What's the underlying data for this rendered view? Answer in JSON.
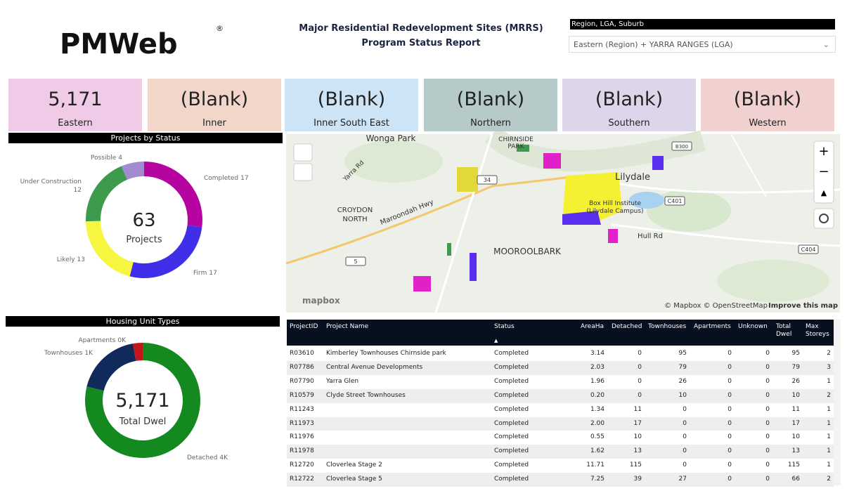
{
  "header": {
    "logo": "PMWeb",
    "logo_mark": "®",
    "title_lines": [
      "Major Residential Redevelopment Sites (MRRS)",
      "Program Status Report"
    ]
  },
  "slicer": {
    "label": "Region, LGA, Suburb",
    "value": "Eastern (Region) + YARRA RANGES (LGA)"
  },
  "cards": [
    {
      "value": "5,171",
      "label": "Eastern",
      "color": "#efcbe7"
    },
    {
      "value": "(Blank)",
      "label": "Inner",
      "color": "#f3d6ca"
    },
    {
      "value": "(Blank)",
      "label": "Inner South East",
      "color": "#cde4f6"
    },
    {
      "value": "(Blank)",
      "label": "Northern",
      "color": "#b5cac9"
    },
    {
      "value": "(Blank)",
      "label": "Southern",
      "color": "#ddd6ea"
    },
    {
      "value": "(Blank)",
      "label": "Western",
      "color": "#f1d0d0"
    }
  ],
  "chart_data": [
    {
      "type": "pie",
      "title": "Projects by Status",
      "donut": true,
      "categories": [
        "Completed",
        "Firm",
        "Likely",
        "Under Construction",
        "Possible"
      ],
      "values": [
        17,
        17,
        13,
        12,
        4
      ],
      "colors": [
        "#b5049f",
        "#3f2fe8",
        "#f6f53f",
        "#3e9a4c",
        "#a48bcf"
      ],
      "center_value": 63,
      "center_label": "Projects"
    },
    {
      "type": "pie",
      "title": "Housing Unit Types",
      "donut": true,
      "categories": [
        "Detached",
        "Townhouses",
        "Apartments"
      ],
      "values": [
        4079,
        952,
        140
      ],
      "value_labels": [
        "4K",
        "1K",
        "0K"
      ],
      "colors": [
        "#13891f",
        "#102a5c",
        "#c5161d"
      ],
      "center_value": {
        "value": 5171,
        "label": "5,171"
      },
      "center_label": "Total Dwel"
    }
  ],
  "map": {
    "places": [
      "Wonga Park",
      "CHIRNSIDE",
      "PARK",
      "Lilydale",
      "CROYDON",
      "NORTH",
      "Maroondah Hwy",
      "Yarra Rd",
      "MOOROOLBARK",
      "Hull Rd",
      "Box Hill Institute",
      "(Lilydale Campus)",
      "34",
      "5",
      "C401",
      "C404",
      "B300"
    ],
    "logo": "mapbox",
    "attribution": "© Mapbox © OpenStreetMap",
    "improve": "Improve this map"
  },
  "table": {
    "columns": [
      "ProjectID",
      "Project Name",
      "Status",
      "AreaHa",
      "Detached",
      "Townhouses",
      "Apartments",
      "Unknown",
      "Total Dwel",
      "Max Storeys"
    ],
    "rows": [
      [
        "R03610",
        "Kimberley Townhouses Chirnside park",
        "Completed",
        "3.14",
        "0",
        "95",
        "0",
        "0",
        "95",
        "2"
      ],
      [
        "R07786",
        "Central Avenue Developments",
        "Completed",
        "2.03",
        "0",
        "79",
        "0",
        "0",
        "79",
        "3"
      ],
      [
        "R07790",
        "Yarra Glen",
        "Completed",
        "1.96",
        "0",
        "26",
        "0",
        "0",
        "26",
        "1"
      ],
      [
        "R10579",
        "Clyde Street Townhouses",
        "Completed",
        "0.20",
        "0",
        "10",
        "0",
        "0",
        "10",
        "2"
      ],
      [
        "R11243",
        null,
        "Completed",
        "1.34",
        "11",
        "0",
        "0",
        "0",
        "11",
        "1"
      ],
      [
        "R11973",
        null,
        "Completed",
        "2.00",
        "17",
        "0",
        "0",
        "0",
        "17",
        "1"
      ],
      [
        "R11976",
        null,
        "Completed",
        "0.55",
        "10",
        "0",
        "0",
        "0",
        "10",
        "1"
      ],
      [
        "R11978",
        null,
        "Completed",
        "1.62",
        "13",
        "0",
        "0",
        "0",
        "13",
        "1"
      ],
      [
        "R12720",
        "Cloverlea Stage 2",
        "Completed",
        "11.71",
        "115",
        "0",
        "0",
        "0",
        "115",
        "1"
      ],
      [
        "R12722",
        "Cloverlea Stage 5",
        "Completed",
        "7.25",
        "39",
        "27",
        "0",
        "0",
        "66",
        "2"
      ]
    ]
  }
}
